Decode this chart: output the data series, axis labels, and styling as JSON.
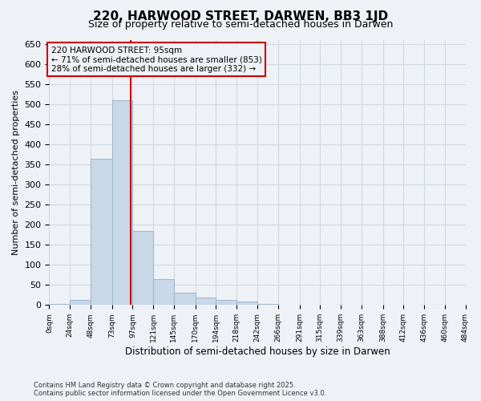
{
  "title_line1": "220, HARWOOD STREET, DARWEN, BB3 1JD",
  "title_line2": "Size of property relative to semi-detached houses in Darwen",
  "xlabel": "Distribution of semi-detached houses by size in Darwen",
  "ylabel": "Number of semi-detached properties",
  "footnote_line1": "Contains HM Land Registry data © Crown copyright and database right 2025.",
  "footnote_line2": "Contains public sector information licensed under the Open Government Licence v3.0.",
  "annotation_title": "220 HARWOOD STREET: 95sqm",
  "annotation_line1": "← 71% of semi-detached houses are smaller (853)",
  "annotation_line2": "28% of semi-detached houses are larger (332) →",
  "property_size_sqm": 95,
  "bin_edges": [
    0,
    24,
    48,
    73,
    97,
    121,
    145,
    170,
    194,
    218,
    242,
    266,
    291,
    315,
    339,
    363,
    388,
    412,
    436,
    460,
    484
  ],
  "bar_heights": [
    3,
    12,
    365,
    510,
    185,
    65,
    30,
    18,
    12,
    8,
    3,
    0,
    0,
    0,
    0,
    0,
    0,
    0,
    1,
    0
  ],
  "tick_labels": [
    "0sqm",
    "24sqm",
    "48sqm",
    "73sqm",
    "97sqm",
    "121sqm",
    "145sqm",
    "170sqm",
    "194sqm",
    "218sqm",
    "242sqm",
    "266sqm",
    "291sqm",
    "315sqm",
    "339sqm",
    "363sqm",
    "388sqm",
    "412sqm",
    "436sqm",
    "460sqm",
    "484sqm"
  ],
  "bar_color": "#c8d8e8",
  "bar_edge_color": "#a0b8d0",
  "vline_color": "#cc0000",
  "vline_x": 95,
  "annotation_box_edgecolor": "#cc0000",
  "grid_color": "#d0d8e0",
  "background_color": "#eef2f6",
  "ylim": [
    0,
    660
  ],
  "yticks": [
    0,
    50,
    100,
    150,
    200,
    250,
    300,
    350,
    400,
    450,
    500,
    550,
    600,
    650
  ]
}
